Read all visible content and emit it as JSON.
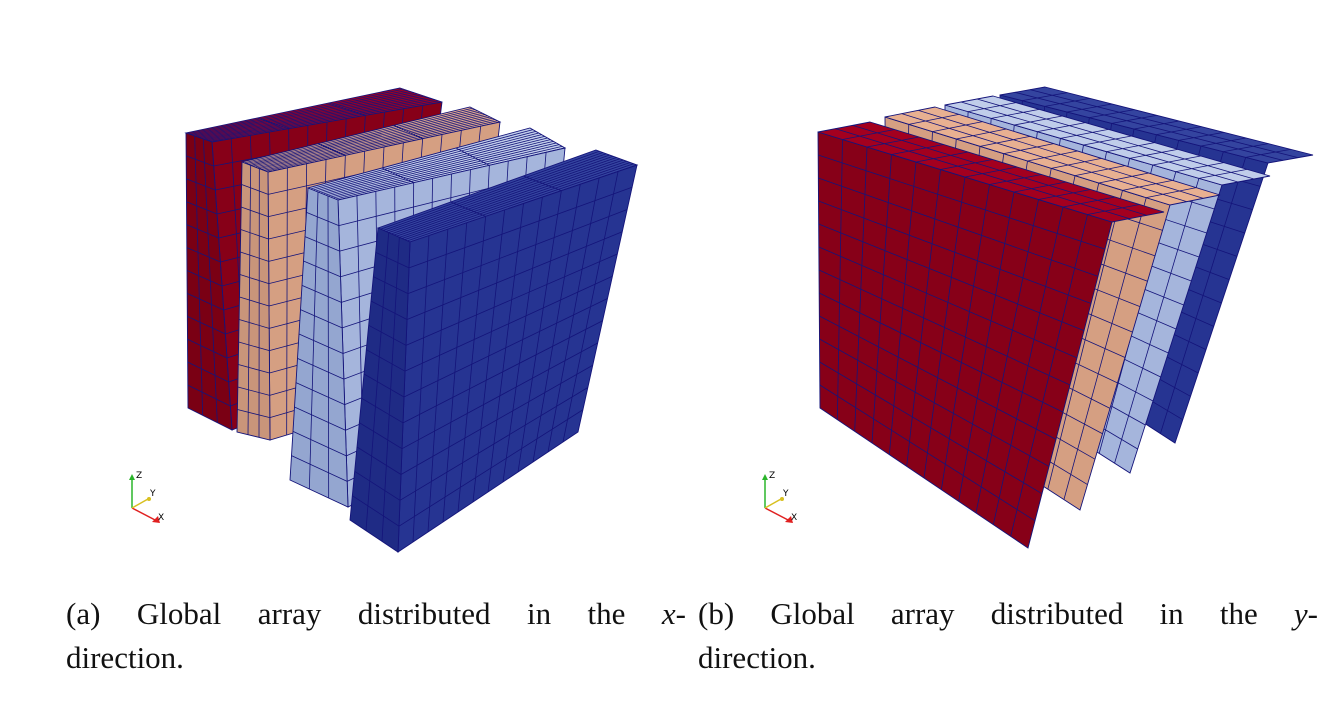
{
  "figures": [
    {
      "axes": {
        "z": "Z",
        "y": "Y",
        "x": "X"
      },
      "caption": {
        "parts": [
          "(a) Global array distributed in the ",
          "x",
          "-",
          "direction."
        ]
      }
    },
    {
      "axes": {
        "z": "Z",
        "y": "Y",
        "x": "X"
      },
      "caption": {
        "parts": [
          "(b) Global array distributed in the ",
          "y",
          "-",
          "direction."
        ]
      }
    }
  ]
}
